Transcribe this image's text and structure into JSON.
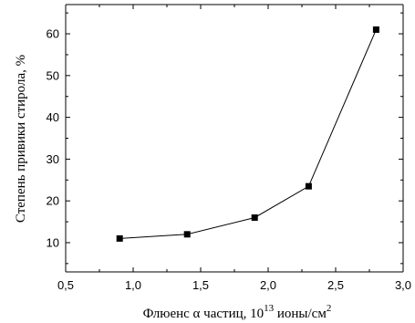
{
  "chart_data": {
    "type": "line",
    "xlabel_main": "Флюенс α частиц, 10",
    "xlabel_exp": "13",
    "xlabel_unit": " ионы/см",
    "xlabel_unit_exp": "2",
    "ylabel": "Степень привики стирола, %",
    "xlim": [
      0.5,
      3.0
    ],
    "ylim": [
      3,
      67
    ],
    "xticks": [
      "0,5",
      "1,0",
      "1,5",
      "2,0",
      "2,5",
      "3,0"
    ],
    "xtick_values": [
      0.5,
      1.0,
      1.5,
      2.0,
      2.5,
      3.0
    ],
    "yticks": [
      "10",
      "20",
      "30",
      "40",
      "50",
      "60"
    ],
    "ytick_values": [
      10,
      20,
      30,
      40,
      50,
      60
    ],
    "grid": false,
    "series": [
      {
        "marker": "square",
        "color": "#000000",
        "x": [
          0.9,
          1.4,
          1.9,
          2.3,
          2.8
        ],
        "y": [
          11,
          12,
          16,
          23.5,
          61
        ]
      }
    ]
  }
}
